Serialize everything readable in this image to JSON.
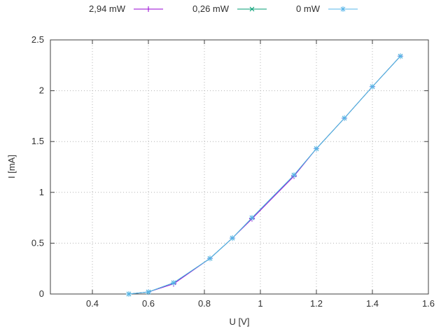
{
  "chart_data": {
    "type": "line",
    "title": "",
    "xlabel": "U [V]",
    "ylabel": "I [mA]",
    "xlim": [
      0.25,
      1.6
    ],
    "ylim": [
      0,
      2.5
    ],
    "grid": true,
    "legend_position": "top-center-outside",
    "xticks": {
      "values": [
        0.4,
        0.6,
        0.8,
        1.0,
        1.2,
        1.4,
        1.6
      ],
      "labels": [
        "0.4",
        "0.6",
        "0.8",
        "1",
        "1.2",
        "1.4",
        "1.6"
      ]
    },
    "yticks": {
      "values": [
        0,
        0.5,
        1.0,
        1.5,
        2.0,
        2.5
      ],
      "labels": [
        "0",
        "0.5",
        "1",
        "1.5",
        "2",
        "2.5"
      ]
    },
    "x": [
      0.53,
      0.6,
      0.69,
      0.82,
      0.9,
      0.97,
      1.12,
      1.2,
      1.3,
      1.4,
      1.5
    ],
    "series": [
      {
        "name": "2,94 mW",
        "color": "#9400d3",
        "marker": "plus",
        "values": [
          0.0,
          0.02,
          0.1,
          0.35,
          0.55,
          0.74,
          1.16,
          1.43,
          1.73,
          2.04,
          2.34
        ]
      },
      {
        "name": "0,26 mW",
        "color": "#009e73",
        "marker": "x",
        "values": [
          0.0,
          0.02,
          0.11,
          0.35,
          0.55,
          0.75,
          1.17,
          1.43,
          1.73,
          2.04,
          2.34
        ]
      },
      {
        "name": "0 mW",
        "color": "#56b4e9",
        "marker": "asterisk",
        "values": [
          0.0,
          0.02,
          0.11,
          0.35,
          0.55,
          0.75,
          1.17,
          1.43,
          1.73,
          2.04,
          2.34
        ]
      }
    ],
    "style": {
      "grid_color": "#b4b4b4",
      "border_color": "#404040",
      "text_color": "#303030"
    }
  }
}
